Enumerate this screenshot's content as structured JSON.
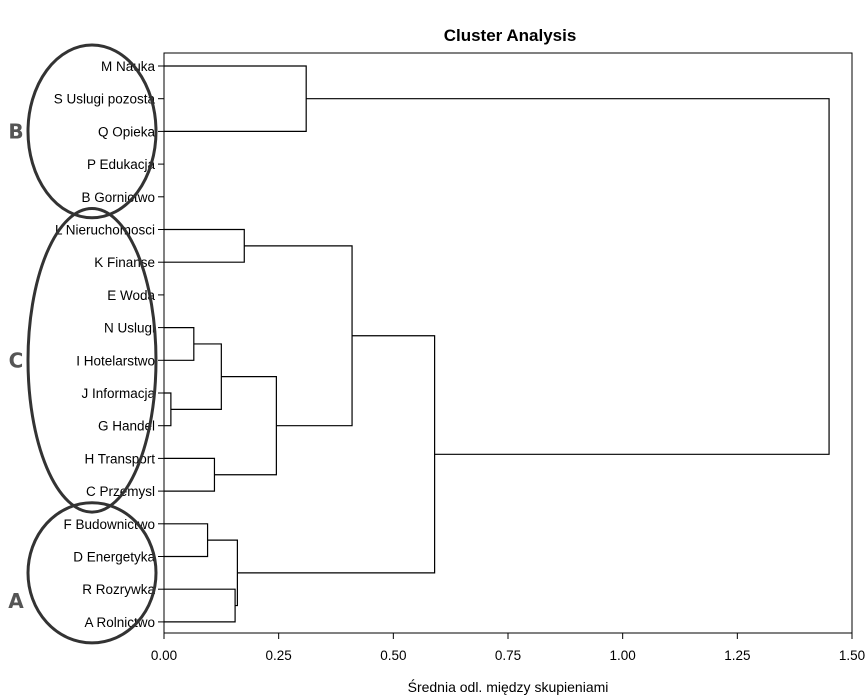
{
  "chart_data": {
    "type": "dendrogram",
    "title": "Cluster Analysis",
    "xlabel": "Średnia odl. między skupieniami",
    "ylabel": "",
    "xlim": [
      0,
      1.5
    ],
    "xticks": [
      0.0,
      0.25,
      0.5,
      0.75,
      1.0,
      1.25,
      1.5
    ],
    "xtick_labels": [
      "0.00",
      "0.25",
      "0.50",
      "0.75",
      "1.00",
      "1.25",
      "1.50"
    ],
    "leaves": [
      "M Nauka",
      "S Uslugi pozosta",
      "Q Opieka",
      "P Edukacja",
      "B Gornictwo",
      "L Nieruchomosci",
      "K Finanse",
      "E Woda",
      "N Uslugi",
      "I Hotelarstwo",
      "J Informacja",
      "G Handel",
      "H Transport",
      "C Przemysl",
      "F Budownictwo",
      "D Energetyka",
      "R Rozrywka",
      "A Rolnictwo"
    ],
    "merges": [
      {
        "id": "m1",
        "children": [
          "J Informacja",
          "G Handel"
        ],
        "height": 0.015
      },
      {
        "id": "m2",
        "children": [
          "N Uslugi",
          "I Hotelarstwo"
        ],
        "height": 0.065
      },
      {
        "id": "m3",
        "children": [
          "F Budownictwo",
          "D Energetyka"
        ],
        "height": 0.095
      },
      {
        "id": "m4",
        "children": [
          "H Transport",
          "C Przemysl"
        ],
        "height": 0.11
      },
      {
        "id": "m5",
        "children": [
          "m2",
          "m1"
        ],
        "height": 0.125
      },
      {
        "id": "m6",
        "children": [
          "R Rozrywka",
          "A Rolnictwo"
        ],
        "height": 0.155
      },
      {
        "id": "m7",
        "children": [
          "m3",
          "m6"
        ],
        "height": 0.16
      },
      {
        "id": "m8",
        "children": [
          "L Nieruchomosci",
          "K Finanse"
        ],
        "height": 0.175
      },
      {
        "id": "m9",
        "children": [
          "m5",
          "m4"
        ],
        "height": 0.245
      },
      {
        "id": "m10",
        "children": [
          "M Nauka",
          "Q Opieka"
        ],
        "height": 0.31
      },
      {
        "id": "m11",
        "children": [
          "m8",
          "m9"
        ],
        "height": 0.41
      },
      {
        "id": "m12",
        "children": [
          "m11",
          "m7"
        ],
        "height": 0.59
      },
      {
        "id": "m13",
        "children": [
          "m10",
          "m12"
        ],
        "height": 1.45
      }
    ],
    "groups": [
      {
        "label": "B",
        "leaves": [
          "M Nauka",
          "S Uslugi pozosta",
          "Q Opieka",
          "P Edukacja",
          "B Gornictwo"
        ]
      },
      {
        "label": "C",
        "leaves": [
          "L Nieruchomosci",
          "K Finanse",
          "E Woda",
          "N Uslugi",
          "I Hotelarstwo",
          "J Informacja",
          "G Handel",
          "H Transport",
          "C Przemysl"
        ]
      },
      {
        "label": "A",
        "leaves": [
          "F Budownictwo",
          "D Energetyka",
          "R Rozrywka",
          "A Rolnictwo"
        ]
      }
    ],
    "grid": false,
    "legend": "none"
  }
}
